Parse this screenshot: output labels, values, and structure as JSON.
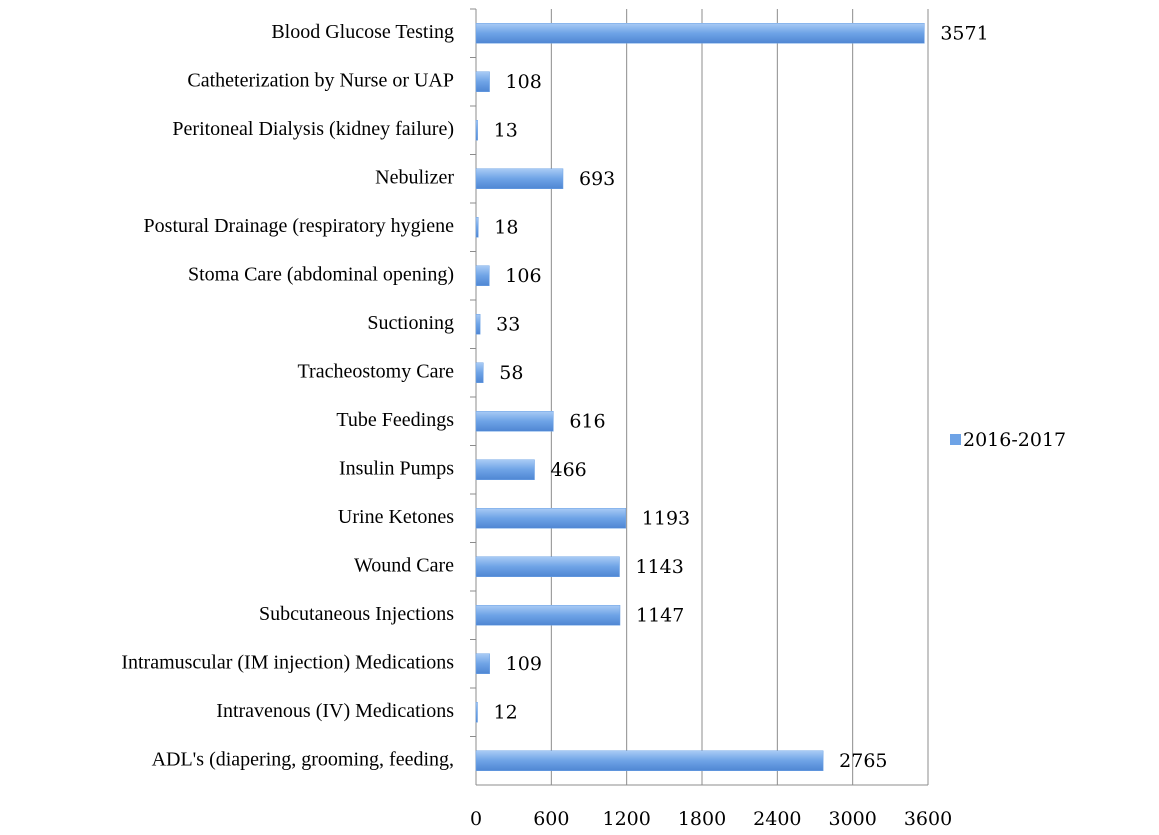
{
  "chart_data": {
    "type": "bar",
    "orientation": "horizontal",
    "categories": [
      "Blood Glucose Testing",
      "Catheterization by Nurse or UAP",
      "Peritoneal Dialysis (kidney failure)",
      "Nebulizer",
      "Postural Drainage (respiratory hygiene",
      "Stoma Care (abdominal opening)",
      "Suctioning",
      "Tracheostomy Care",
      "Tube Feedings",
      "Insulin Pumps",
      "Urine Ketones",
      "Wound Care",
      "Subcutaneous Injections",
      "Intramuscular (IM injection) Medications",
      "Intravenous (IV) Medications",
      "ADL's (diapering, grooming, feeding,"
    ],
    "series": [
      {
        "name": "2016-2017",
        "color": "#6ea3e6",
        "values": [
          3571,
          108,
          13,
          693,
          18,
          106,
          33,
          58,
          616,
          466,
          1193,
          1143,
          1147,
          109,
          12,
          2765
        ]
      }
    ],
    "xlim": [
      0,
      3600
    ],
    "xticks": [
      0,
      600,
      1200,
      1800,
      2400,
      3000,
      3600
    ],
    "grid": true,
    "legend": "right"
  }
}
